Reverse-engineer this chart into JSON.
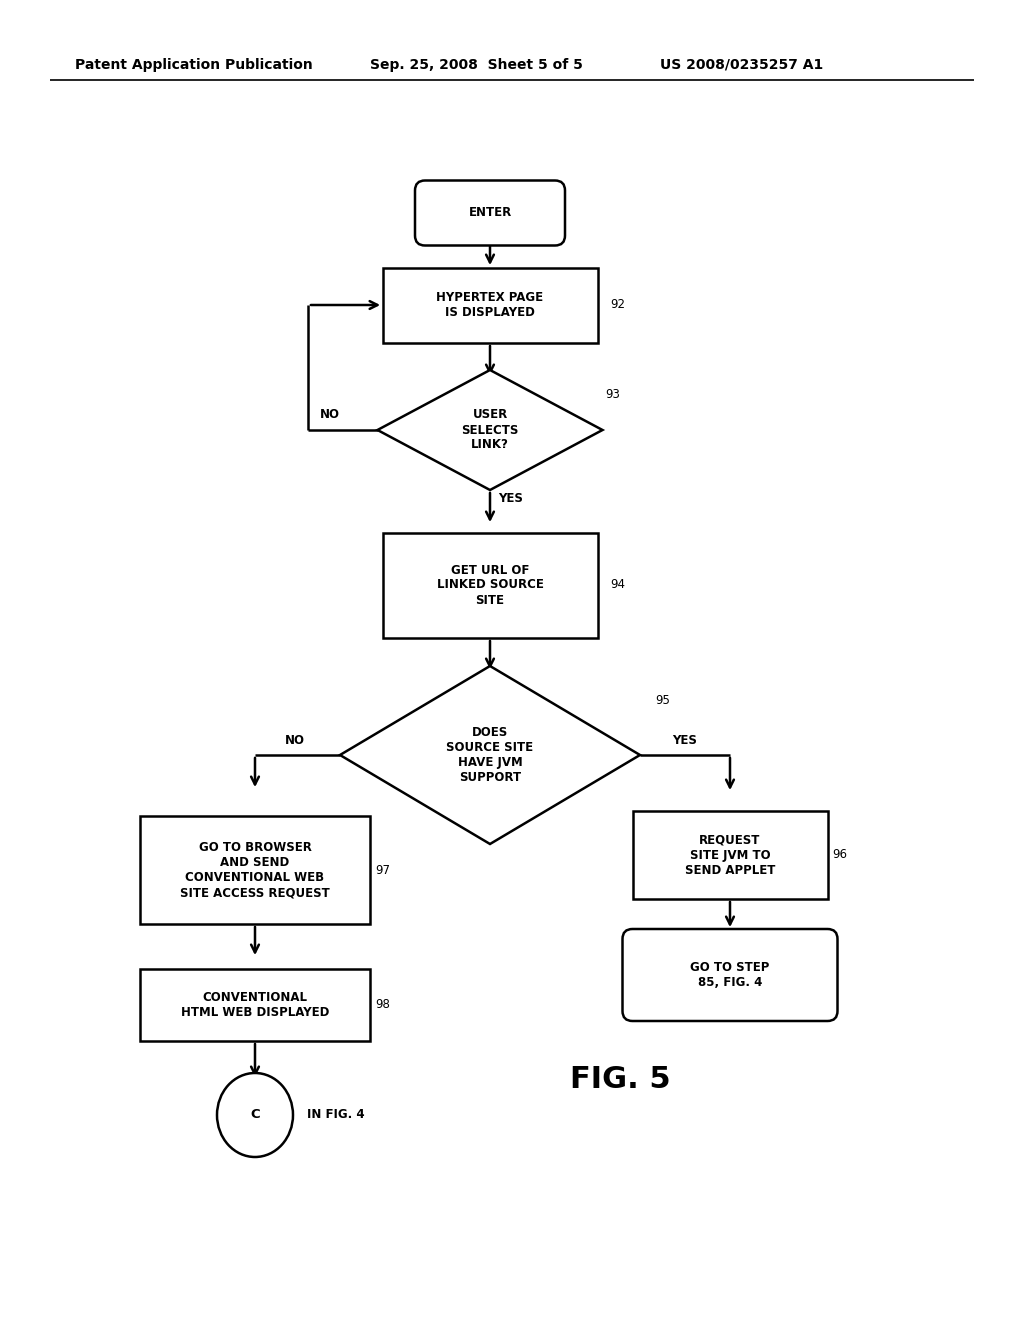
{
  "bg_color": "#ffffff",
  "header_left": "Patent Application Publication",
  "header_mid": "Sep. 25, 2008  Sheet 5 of 5",
  "header_right": "US 2008/0235257 A1",
  "fig_label": "FIG. 5",
  "line_width": 1.8,
  "font_size_nodes": 8.5,
  "font_size_labels": 8.5,
  "font_size_header": 10,
  "font_size_fig": 22
}
